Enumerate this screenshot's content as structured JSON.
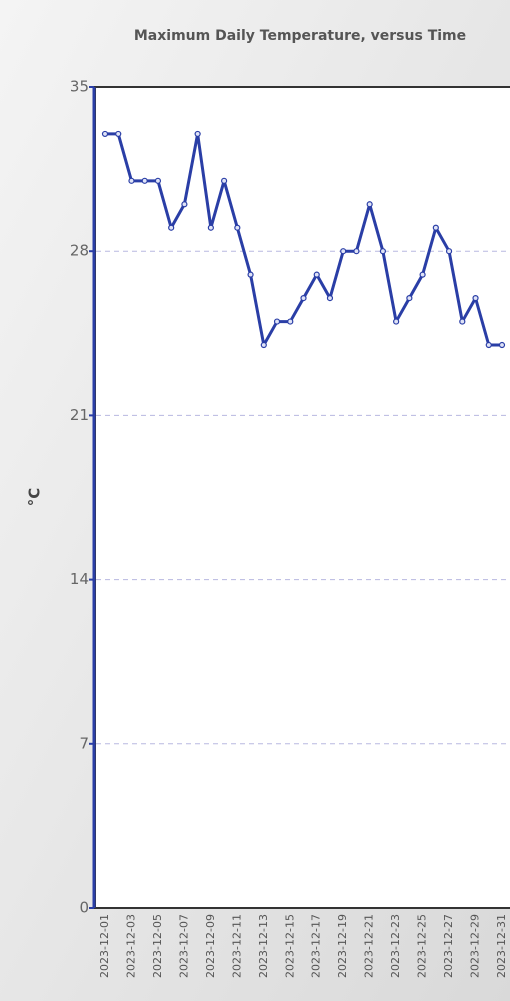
{
  "chart_data": {
    "type": "line",
    "title": "Maximum Daily Temperature, versus Time",
    "y_label": "°C",
    "categories": [
      "2023-12-01",
      null,
      "2023-12-03",
      null,
      "2023-12-05",
      null,
      "2023-12-07",
      null,
      "2023-12-09",
      null,
      "2023-12-11",
      null,
      "2023-12-13",
      null,
      "2023-12-15",
      null,
      "2023-12-17",
      null,
      "2023-12-19",
      null,
      "2023-12-21",
      null,
      "2023-12-23",
      null,
      "2023-12-25",
      null,
      "2023-12-27",
      null,
      "2023-12-29",
      null,
      "2023-12-31"
    ],
    "values": [
      33,
      33,
      31,
      31,
      31,
      29,
      30,
      33,
      29,
      31,
      29,
      27,
      24,
      25,
      25,
      26,
      27,
      26,
      28,
      28,
      30,
      28,
      25,
      26,
      27,
      29,
      28,
      25,
      26,
      24,
      24
    ],
    "color": "#2a3ea6",
    "ylim": [
      0,
      35
    ],
    "yticks": [
      0,
      7,
      14,
      21,
      28,
      35
    ],
    "grid": true
  }
}
